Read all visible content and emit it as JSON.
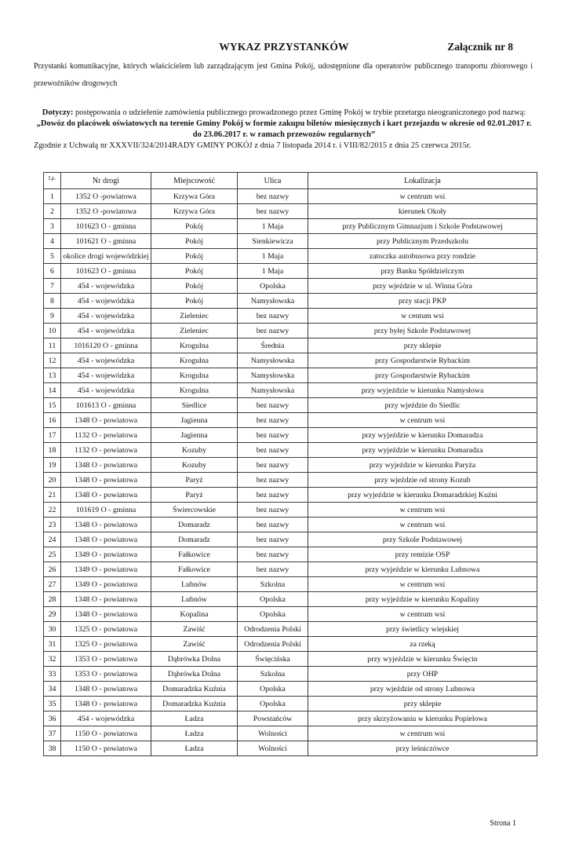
{
  "header": {
    "title": "WYKAZ PRZYSTANKÓW",
    "attachment": "Załącznik nr 8",
    "intro": "Przystanki komunikacyjne, których właścicielem lub zarządzającym jest Gmina Pokój, udostępnione dla operatorów publicznego transportu zbiorowego i przewoźników drogowych",
    "dotyczy_label": "Dotyczy:",
    "dotyczy_text": " postępowania o udzielenie zamówienia publicznego prowadzonego przez Gminę Pokój w trybie przetargu nieograniczonego pod nazwą:",
    "subject": "„Dowóz do placówek oświatowych na terenie Gminy Pokój w formie zakupu biletów miesięcznych i kart przejazdu w okresie od 02.01.2017 r. do 23.06.2017 r. w ramach przewozów regularnych”",
    "legal": "Zgodnie z Uchwałą nr XXXVII/324/2014RADY GMINY POKÓJ z dnia 7 listopada 2014 r. i VIII/82/2015 z dnia 25 czerwca 2015r."
  },
  "table": {
    "headers": [
      "Lp.",
      "Nr drogi",
      "Miejscowość",
      "Ulica",
      "Lokalizacja"
    ],
    "column_keys": [
      "lp",
      "nr-drogi",
      "miejscowosc",
      "ulica",
      "lokalizacja"
    ],
    "rows": [
      [
        "1",
        "1352 O -powiatowa",
        "Krzywa Góra",
        "bez nazwy",
        "w centrum wsi"
      ],
      [
        "2",
        "1352 O -powiatowa",
        "Krzywa Góra",
        "bez nazwy",
        "kierunek Okoły"
      ],
      [
        "3",
        "101623 O - gminna",
        "Pokój",
        "1 Maja",
        "przy Publicznym Gimnazjum i Szkole Podstawowej"
      ],
      [
        "4",
        "101621 O - gminna",
        "Pokój",
        "Sienkiewicza",
        "przy Publicznym Przedszkolu"
      ],
      [
        "5",
        "okolice drogi wojewódzkiej",
        "Pokój",
        "1 Maja",
        "zatoczka autobusowa przy rondzie"
      ],
      [
        "6",
        "101623 O - gminna",
        "Pokój",
        "1 Maja",
        "przy Banku Spółdzielczym"
      ],
      [
        "7",
        "454 - wojewódzka",
        "Pokój",
        "Opolska",
        "przy wjeździe w ul. Winna Góra"
      ],
      [
        "8",
        "454 - wojewódzka",
        "Pokój",
        "Namysłowska",
        "przy stacji PKP"
      ],
      [
        "9",
        "454 - wojewódzka",
        "Zieleniec",
        "bez nazwy",
        "w centum wsi"
      ],
      [
        "10",
        "454 - wojewódzka",
        "Zieleniec",
        "bez nazwy",
        "przy byłej Szkole Podstawowej"
      ],
      [
        "11",
        "1016120 O - gminna",
        "Krogulna",
        "Średnia",
        "przy sklepie"
      ],
      [
        "12",
        "454 - wojewódzka",
        "Krogulna",
        "Namysłowska",
        "przy Gospodarstwie Rybackim"
      ],
      [
        "13",
        "454 - wojewódzka",
        "Krogulna",
        "Namysłowska",
        "przy Gospodarstwie Rybackim"
      ],
      [
        "14",
        "454 - wojewódzka",
        "Krogulna",
        "Namysłowska",
        "przy wyjeździe w kierunku Namysłowa"
      ],
      [
        "15",
        "101613 O - gminna",
        "Siedlice",
        "bez nazwy",
        "przy wjeździe do Siedlic"
      ],
      [
        "16",
        "1348 O - powiatowa",
        "Jagienna",
        "bez nazwy",
        "w centrum wsi"
      ],
      [
        "17",
        "1132 O - powiatowa",
        "Jagienna",
        "bez nazwy",
        "przy wyjeździe w kierunku Domaradza"
      ],
      [
        "18",
        "1132 O - powiatowa",
        "Kozuby",
        "bez nazwy",
        "przy wyjeździe w kierunku Domaradza"
      ],
      [
        "19",
        "1348 O - powiatowa",
        "Kozuby",
        "bez nazwy",
        "przy wyjeździe w kierunku Paryża"
      ],
      [
        "20",
        "1348 O - powiatowa",
        "Paryż",
        "bez nazwy",
        "przy wjeździe od strony Kozub"
      ],
      [
        "21",
        "1348 O - powiatowa",
        "Paryż",
        "bez nazwy",
        "przy wyjeździe w kierunku Domaradzkiej Kuźni"
      ],
      [
        "22",
        "101619 O - gminna",
        "Świercowskie",
        "bez nazwy",
        "w centrum wsi"
      ],
      [
        "23",
        "1348 O - powiatowa",
        "Domaradz",
        "bez nazwy",
        "w centrum wsi"
      ],
      [
        "24",
        "1348 O - powiatowa",
        "Domaradz",
        "bez nazwy",
        "przy Szkole Podstawowej"
      ],
      [
        "25",
        "1349 O - powiatowa",
        "Fałkowice",
        "bez nazwy",
        "przy remizie OSP"
      ],
      [
        "26",
        "1349 O - powiatowa",
        "Fałkowice",
        "bez nazwy",
        "przy wyjeździe w kierunku Lubnowa"
      ],
      [
        "27",
        "1349 O - powiatowa",
        "Lubnów",
        "Szkolna",
        "w centrum wsi"
      ],
      [
        "28",
        "1348 O - powiatowa",
        "Lubnów",
        "Opolska",
        "przy wyjeździe w kierunku Kopaliny"
      ],
      [
        "29",
        "1348 O - powiatowa",
        "Kopalina",
        "Opolska",
        "w centrum wsi"
      ],
      [
        "30",
        "1325 O - powiatowa",
        "Zawiść",
        "Odrodzenia Polski",
        "przy świetlicy wiejskiej"
      ],
      [
        "31",
        "1325 O - powiatowa",
        "Zawiść",
        "Odrodzenia Polski",
        "za rzeką"
      ],
      [
        "32",
        "1353 O - powiatowa",
        "Dąbrówka Dolna",
        "Święcińska",
        "przy wyjeździe w kierunku Święcin"
      ],
      [
        "33",
        "1353 O - powiatowa",
        "Dąbrówka Dolna",
        "Szkolna",
        "przy OHP"
      ],
      [
        "34",
        "1348 O - powiatowa",
        "Domaradzka Kuźnia",
        "Opolska",
        "przy wjeździe od strony Lubnowa"
      ],
      [
        "35",
        "1348 O - powiatowa",
        "Domaradzka Kuźnia",
        "Opolska",
        "przy sklepie"
      ],
      [
        "36",
        "454 - wojewódzka",
        "Ładza",
        "Powstańców",
        "przy skrzyżowaniu w kierunku Popielowa"
      ],
      [
        "37",
        "1150 O - powiatowa",
        "Ładza",
        "Wolności",
        "w centrum wsi"
      ],
      [
        "38",
        "1150 O - powiatowa",
        "Ładza",
        "Wolności",
        "przy leśniczówce"
      ]
    ]
  },
  "footer": {
    "page_label": "Strona 1"
  }
}
